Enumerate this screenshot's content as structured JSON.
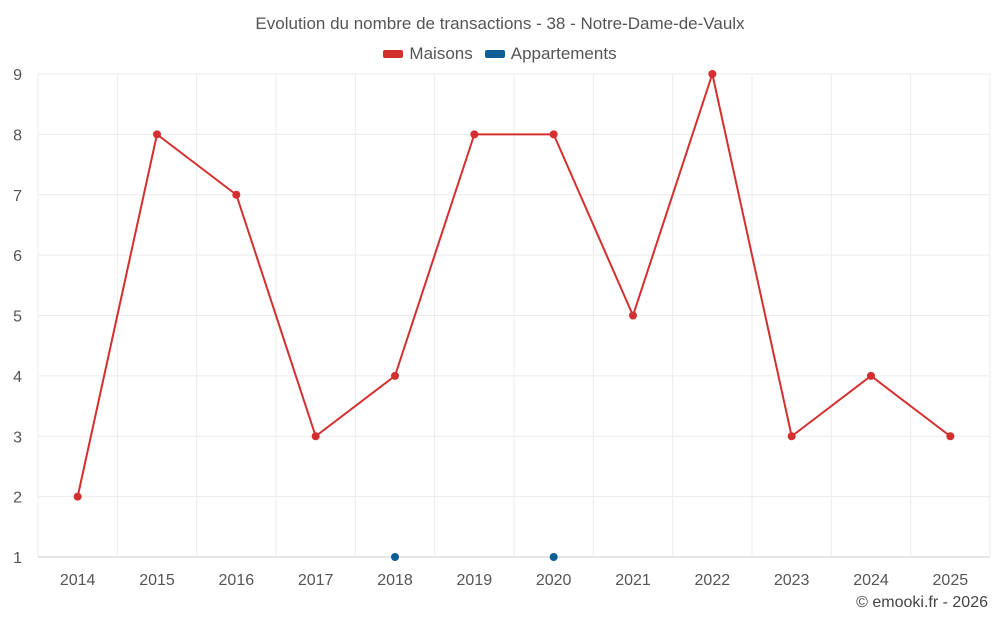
{
  "chart_data": {
    "type": "line",
    "title": "Evolution du nombre de transactions - 38 - Notre-Dame-de-Vaulx",
    "x": [
      "2014",
      "2015",
      "2016",
      "2017",
      "2018",
      "2019",
      "2020",
      "2021",
      "2022",
      "2023",
      "2024",
      "2025"
    ],
    "ylim": [
      1,
      9
    ],
    "yticks": [
      "1",
      "2",
      "3",
      "4",
      "5",
      "6",
      "7",
      "8",
      "9"
    ],
    "grid": true,
    "legend_position": "top",
    "series": [
      {
        "name": "Maisons",
        "color": "#d32f2f",
        "line": true,
        "values": [
          2,
          8,
          7,
          3,
          4,
          8,
          8,
          5,
          9,
          3,
          4,
          3
        ]
      },
      {
        "name": "Appartements",
        "color": "#0d5e96",
        "line": false,
        "values": [
          null,
          null,
          null,
          null,
          1,
          null,
          1,
          null,
          null,
          null,
          null,
          null
        ]
      }
    ]
  },
  "credit": "© emooki.fr - 2026"
}
